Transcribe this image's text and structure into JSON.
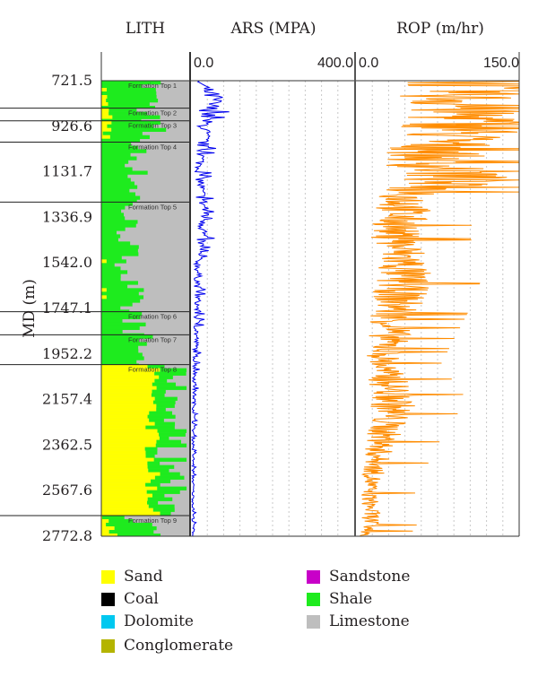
{
  "chart_data": {
    "type": "well-log",
    "y_axis": {
      "label": "MD (m)",
      "ticks": [
        721.5,
        926.6,
        1131.7,
        1336.9,
        1542.0,
        1747.1,
        1952.2,
        2157.4,
        2362.5,
        2567.6,
        2772.8
      ],
      "tick_labels": [
        "721.5",
        "926.6",
        "1131.7",
        "1336.9",
        "1542.0",
        "1747.1",
        "1952.2",
        "2157.4",
        "2362.5",
        "2567.6",
        "2772.8"
      ],
      "range": [
        721.5,
        2772.8
      ],
      "inverted": true
    },
    "tracks": [
      {
        "id": "lith",
        "title": "LITH",
        "type": "lithology",
        "formation_tops": [
          {
            "label": "Formation Top 1",
            "md": 721.5
          },
          {
            "label": "Formation Top 2",
            "md": 845
          },
          {
            "label": "Formation Top 3",
            "md": 902
          },
          {
            "label": "Formation Top 4",
            "md": 998
          },
          {
            "label": "Formation Top 5",
            "md": 1268
          },
          {
            "label": "Formation Top 6",
            "md": 1762
          },
          {
            "label": "Formation Top 7",
            "md": 1866
          },
          {
            "label": "Formation Top 8",
            "md": 2000
          },
          {
            "label": "Formation Top 9",
            "md": 2680
          }
        ],
        "intervals": [
          {
            "top": 721.5,
            "base": 845,
            "shale": 0.55,
            "sand": 0.02
          },
          {
            "top": 845,
            "base": 902,
            "shale": 0.45,
            "sand": 0.05
          },
          {
            "top": 902,
            "base": 998,
            "shale": 0.5,
            "sand": 0.04
          },
          {
            "top": 998,
            "base": 1268,
            "shale": 0.4,
            "sand": 0.0
          },
          {
            "top": 1268,
            "base": 1762,
            "shale": 0.3,
            "sand": 0.0
          },
          {
            "top": 1762,
            "base": 1866,
            "shale": 0.38,
            "sand": 0.0
          },
          {
            "top": 1866,
            "base": 2000,
            "shale": 0.45,
            "sand": 0.0
          },
          {
            "top": 2000,
            "base": 2680,
            "shale": 0.25,
            "sand": 0.58
          },
          {
            "top": 2680,
            "base": 2772.8,
            "shale": 0.4,
            "sand": 0.1
          }
        ]
      },
      {
        "id": "ars",
        "title": "ARS (MPA)",
        "type": "line",
        "color": "#0000ee",
        "min": 0.0,
        "max": 400.0,
        "min_label": "0.0",
        "max_label": "400.0",
        "profile": [
          {
            "md": 721.5,
            "value": 18
          },
          {
            "md": 800,
            "value": 55
          },
          {
            "md": 900,
            "value": 35
          },
          {
            "md": 1000,
            "value": 30
          },
          {
            "md": 1100,
            "value": 22
          },
          {
            "md": 1250,
            "value": 25
          },
          {
            "md": 1320,
            "value": 40
          },
          {
            "md": 1500,
            "value": 18
          },
          {
            "md": 1800,
            "value": 15
          },
          {
            "md": 2000,
            "value": 10
          },
          {
            "md": 2300,
            "value": 6
          },
          {
            "md": 2600,
            "value": 5
          },
          {
            "md": 2772.8,
            "value": 6
          }
        ]
      },
      {
        "id": "rop",
        "title": "ROP (m/hr)",
        "type": "line",
        "color": "#ff8c00",
        "min": 0.0,
        "max": 150.0,
        "min_label": "0.0",
        "max_label": "150.0",
        "profile": [
          {
            "md": 721.5,
            "value": 140
          },
          {
            "md": 800,
            "value": 120
          },
          {
            "md": 926.6,
            "value": 135
          },
          {
            "md": 1000,
            "value": 100
          },
          {
            "md": 1100,
            "value": 85
          },
          {
            "md": 1131.7,
            "value": 125
          },
          {
            "md": 1250,
            "value": 60
          },
          {
            "md": 1400,
            "value": 45
          },
          {
            "md": 1550,
            "value": 55
          },
          {
            "md": 1700,
            "value": 50
          },
          {
            "md": 1850,
            "value": 40
          },
          {
            "md": 2000,
            "value": 30
          },
          {
            "md": 2157.4,
            "value": 45
          },
          {
            "md": 2362.5,
            "value": 28
          },
          {
            "md": 2567.6,
            "value": 15
          },
          {
            "md": 2700,
            "value": 18
          },
          {
            "md": 2772.8,
            "value": 12
          }
        ]
      }
    ],
    "legend": {
      "placement": "bottom",
      "items": [
        {
          "label": "Sand",
          "color": "#ffff00"
        },
        {
          "label": "Coal",
          "color": "#000000"
        },
        {
          "label": "Dolomite",
          "color": "#00c8f0"
        },
        {
          "label": "Conglomerate",
          "color": "#b4b400"
        },
        {
          "label": "Sandstone",
          "color": "#c800c8"
        },
        {
          "label": "Shale",
          "color": "#1eeb1e"
        },
        {
          "label": "Limestone",
          "color": "#bebebe"
        }
      ]
    }
  }
}
